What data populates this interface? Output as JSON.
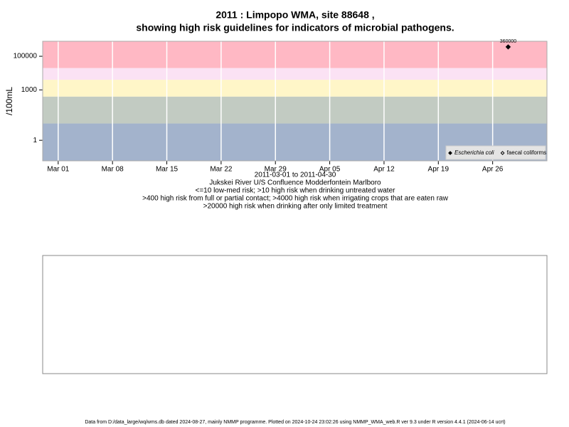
{
  "chart_data": {
    "type": "scatter",
    "title": "2011 : Limpopo WMA, site 88648 ,",
    "subtitle": "showing high risk guidelines for indicators of microbial pathogens.",
    "ylabel": "/100mL",
    "xlabel_lines": [
      "2011-03-01 to 2011-04-30",
      "Jukskei River U/S Confluence Modderfontein Marlboro",
      "<=10 low-med risk; >10 high risk when drinking untreated water",
      ">400 high risk from full or partial contact; >4000 high risk when irrigating crops that are eaten raw",
      ">20000 high risk when drinking after only limited treatment"
    ],
    "footer": "Data from D:/data_large/wq/wms.db dated 2024-08-27, mainly NMMP programme. Plotted on 2024-10-24 23:02:26 using NMMP_WMA_web.R ver 9.3 under R version 4.4.1 (2024-06-14 ucrt)",
    "log_y": true,
    "ylim": [
      0.06,
      780000
    ],
    "yticks": [
      1,
      1000,
      100000
    ],
    "xlim": [
      "2011-02-27",
      "2011-05-03"
    ],
    "xticks": [
      {
        "value": "2011-03-01",
        "label": "Mar 01"
      },
      {
        "value": "2011-03-08",
        "label": "Mar 08"
      },
      {
        "value": "2011-03-15",
        "label": "Mar 15"
      },
      {
        "value": "2011-03-22",
        "label": "Mar 22"
      },
      {
        "value": "2011-03-29",
        "label": "Mar 29"
      },
      {
        "value": "2011-04-05",
        "label": "Apr 05"
      },
      {
        "value": "2011-04-12",
        "label": "Apr 12"
      },
      {
        "value": "2011-04-19",
        "label": "Apr 19"
      },
      {
        "value": "2011-04-26",
        "label": "Apr 26"
      }
    ],
    "grid": "x",
    "thresholds": [
      10,
      400,
      4000,
      20000
    ],
    "band_colors": [
      "#a3b3cc",
      "#c2cbc2",
      "#fff6c8",
      "#fbe2f4",
      "#ffb8c4"
    ],
    "legend_position": "lower right",
    "series": [
      {
        "name": "Escherichia coli",
        "color": "#000000",
        "marker": "filled-diamond",
        "x": [
          "2011-04-28"
        ],
        "values": [
          360000
        ]
      },
      {
        "name": "faecal coliforms",
        "color": "#000000",
        "marker": "open-diamond",
        "x": [],
        "values": []
      }
    ]
  }
}
